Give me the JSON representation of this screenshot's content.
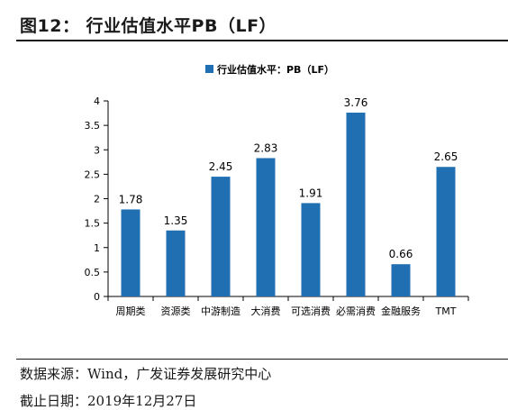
{
  "figure": {
    "title": "图12：  行业估值水平PB（LF）",
    "source": "数据来源：Wind，广发证券发展研究中心",
    "cutoff_note": "截止日期：2019年12月27日"
  },
  "chart_data": {
    "type": "bar",
    "categories": [
      "周期类",
      "资源类",
      "中游制造",
      "大消费",
      "可选消费",
      "必需消费",
      "金融服务",
      "TMT"
    ],
    "series": [
      {
        "name": "行业估值水平：PB（LF）",
        "values": [
          1.78,
          1.35,
          2.45,
          2.83,
          1.91,
          3.76,
          0.66,
          2.65
        ]
      }
    ],
    "value_labels": [
      "1.78",
      "1.35",
      "2.45",
      "2.83",
      "1.91",
      "3.76",
      "0.66",
      "2.65"
    ],
    "yticks": [
      "0",
      "0.5",
      "1",
      "1.5",
      "2",
      "2.5",
      "3",
      "3.5",
      "4"
    ],
    "ylim": [
      0,
      4
    ],
    "legend_position": "top-center",
    "grid": false,
    "bar_color": "#1f6fb2"
  }
}
